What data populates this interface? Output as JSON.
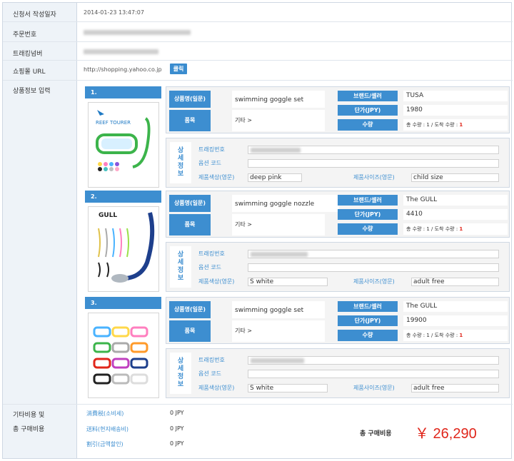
{
  "labels": {
    "date": "신청서 작성일자",
    "order": "주문번호",
    "tracking": "트래킹넘버",
    "shop_url": "쇼핑몰 URL",
    "product_info": "상품정보 입력",
    "fees_line1": "기타비용 및",
    "fees_line2": "총 구매비용"
  },
  "values": {
    "date": "2014-01-23 13:47:07",
    "shop_url": "http://shopping.yahoo.co.jp",
    "click_btn": "클릭"
  },
  "headers": {
    "name": "상품명(일문)",
    "category": "품목",
    "brand": "브랜드/셀러",
    "price": "단가(JPY)",
    "qty": "수량"
  },
  "detail_headers": {
    "side": [
      "상",
      "세",
      "정",
      "보"
    ],
    "tracking": "트래킹번호",
    "option": "옵션 코드",
    "color": "제품색상(영문)",
    "size": "제품사이즈(영문)"
  },
  "qty_prefix": "총 수량 : 1 / 도착 수량 : ",
  "products": [
    {
      "num": "1.",
      "name": "swimming goggle set",
      "category": "기타 >",
      "brand": "TUSA",
      "price": "1980",
      "arrived": "1",
      "tracking": "3568-1047-0833",
      "color": "deep pink",
      "size": "child size"
    },
    {
      "num": "2.",
      "name": "swimming goggle nozzle",
      "category": "기타 >",
      "brand": "The GULL",
      "price": "4410",
      "arrived": "1",
      "color": "S white",
      "size": "adult free"
    },
    {
      "num": "3.",
      "name": "swimming goggle set",
      "category": "기타 >",
      "brand": "The GULL",
      "price": "19900",
      "arrived": "1",
      "color": "S white",
      "size": "adult free"
    }
  ],
  "fees": [
    {
      "label": "消費税(소비세)",
      "value": "0 JPY"
    },
    {
      "label": "送料(현지배송비)",
      "value": "0 JPY"
    },
    {
      "label": "割引(금액할인)",
      "value": "0 JPY"
    }
  ],
  "total": {
    "label": "총 구매비용",
    "value": "￥ 26,290"
  },
  "colors": {
    "accent": "#3d8ed0",
    "total": "#e0261b",
    "sidebar": "#eef3f8"
  }
}
